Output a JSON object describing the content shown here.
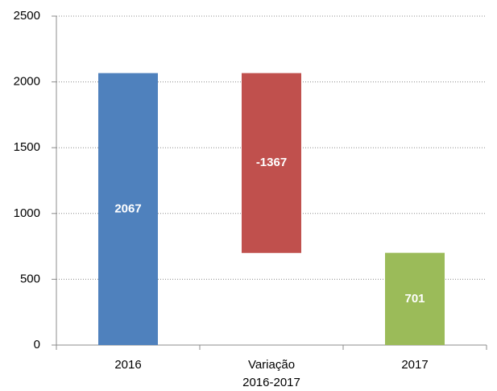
{
  "chart_data": {
    "type": "waterfall",
    "categories": [
      "2016",
      "Variação 2016-2017",
      "2017"
    ],
    "values": [
      2067,
      -1367,
      701
    ],
    "is_total": [
      true,
      false,
      true
    ],
    "colors": [
      "#4f81bd",
      "#c0504d",
      "#9bbb59"
    ],
    "ylim": [
      0,
      2500
    ],
    "yticks": [
      0,
      500,
      1000,
      1500,
      2000,
      2500
    ],
    "grid": true
  }
}
